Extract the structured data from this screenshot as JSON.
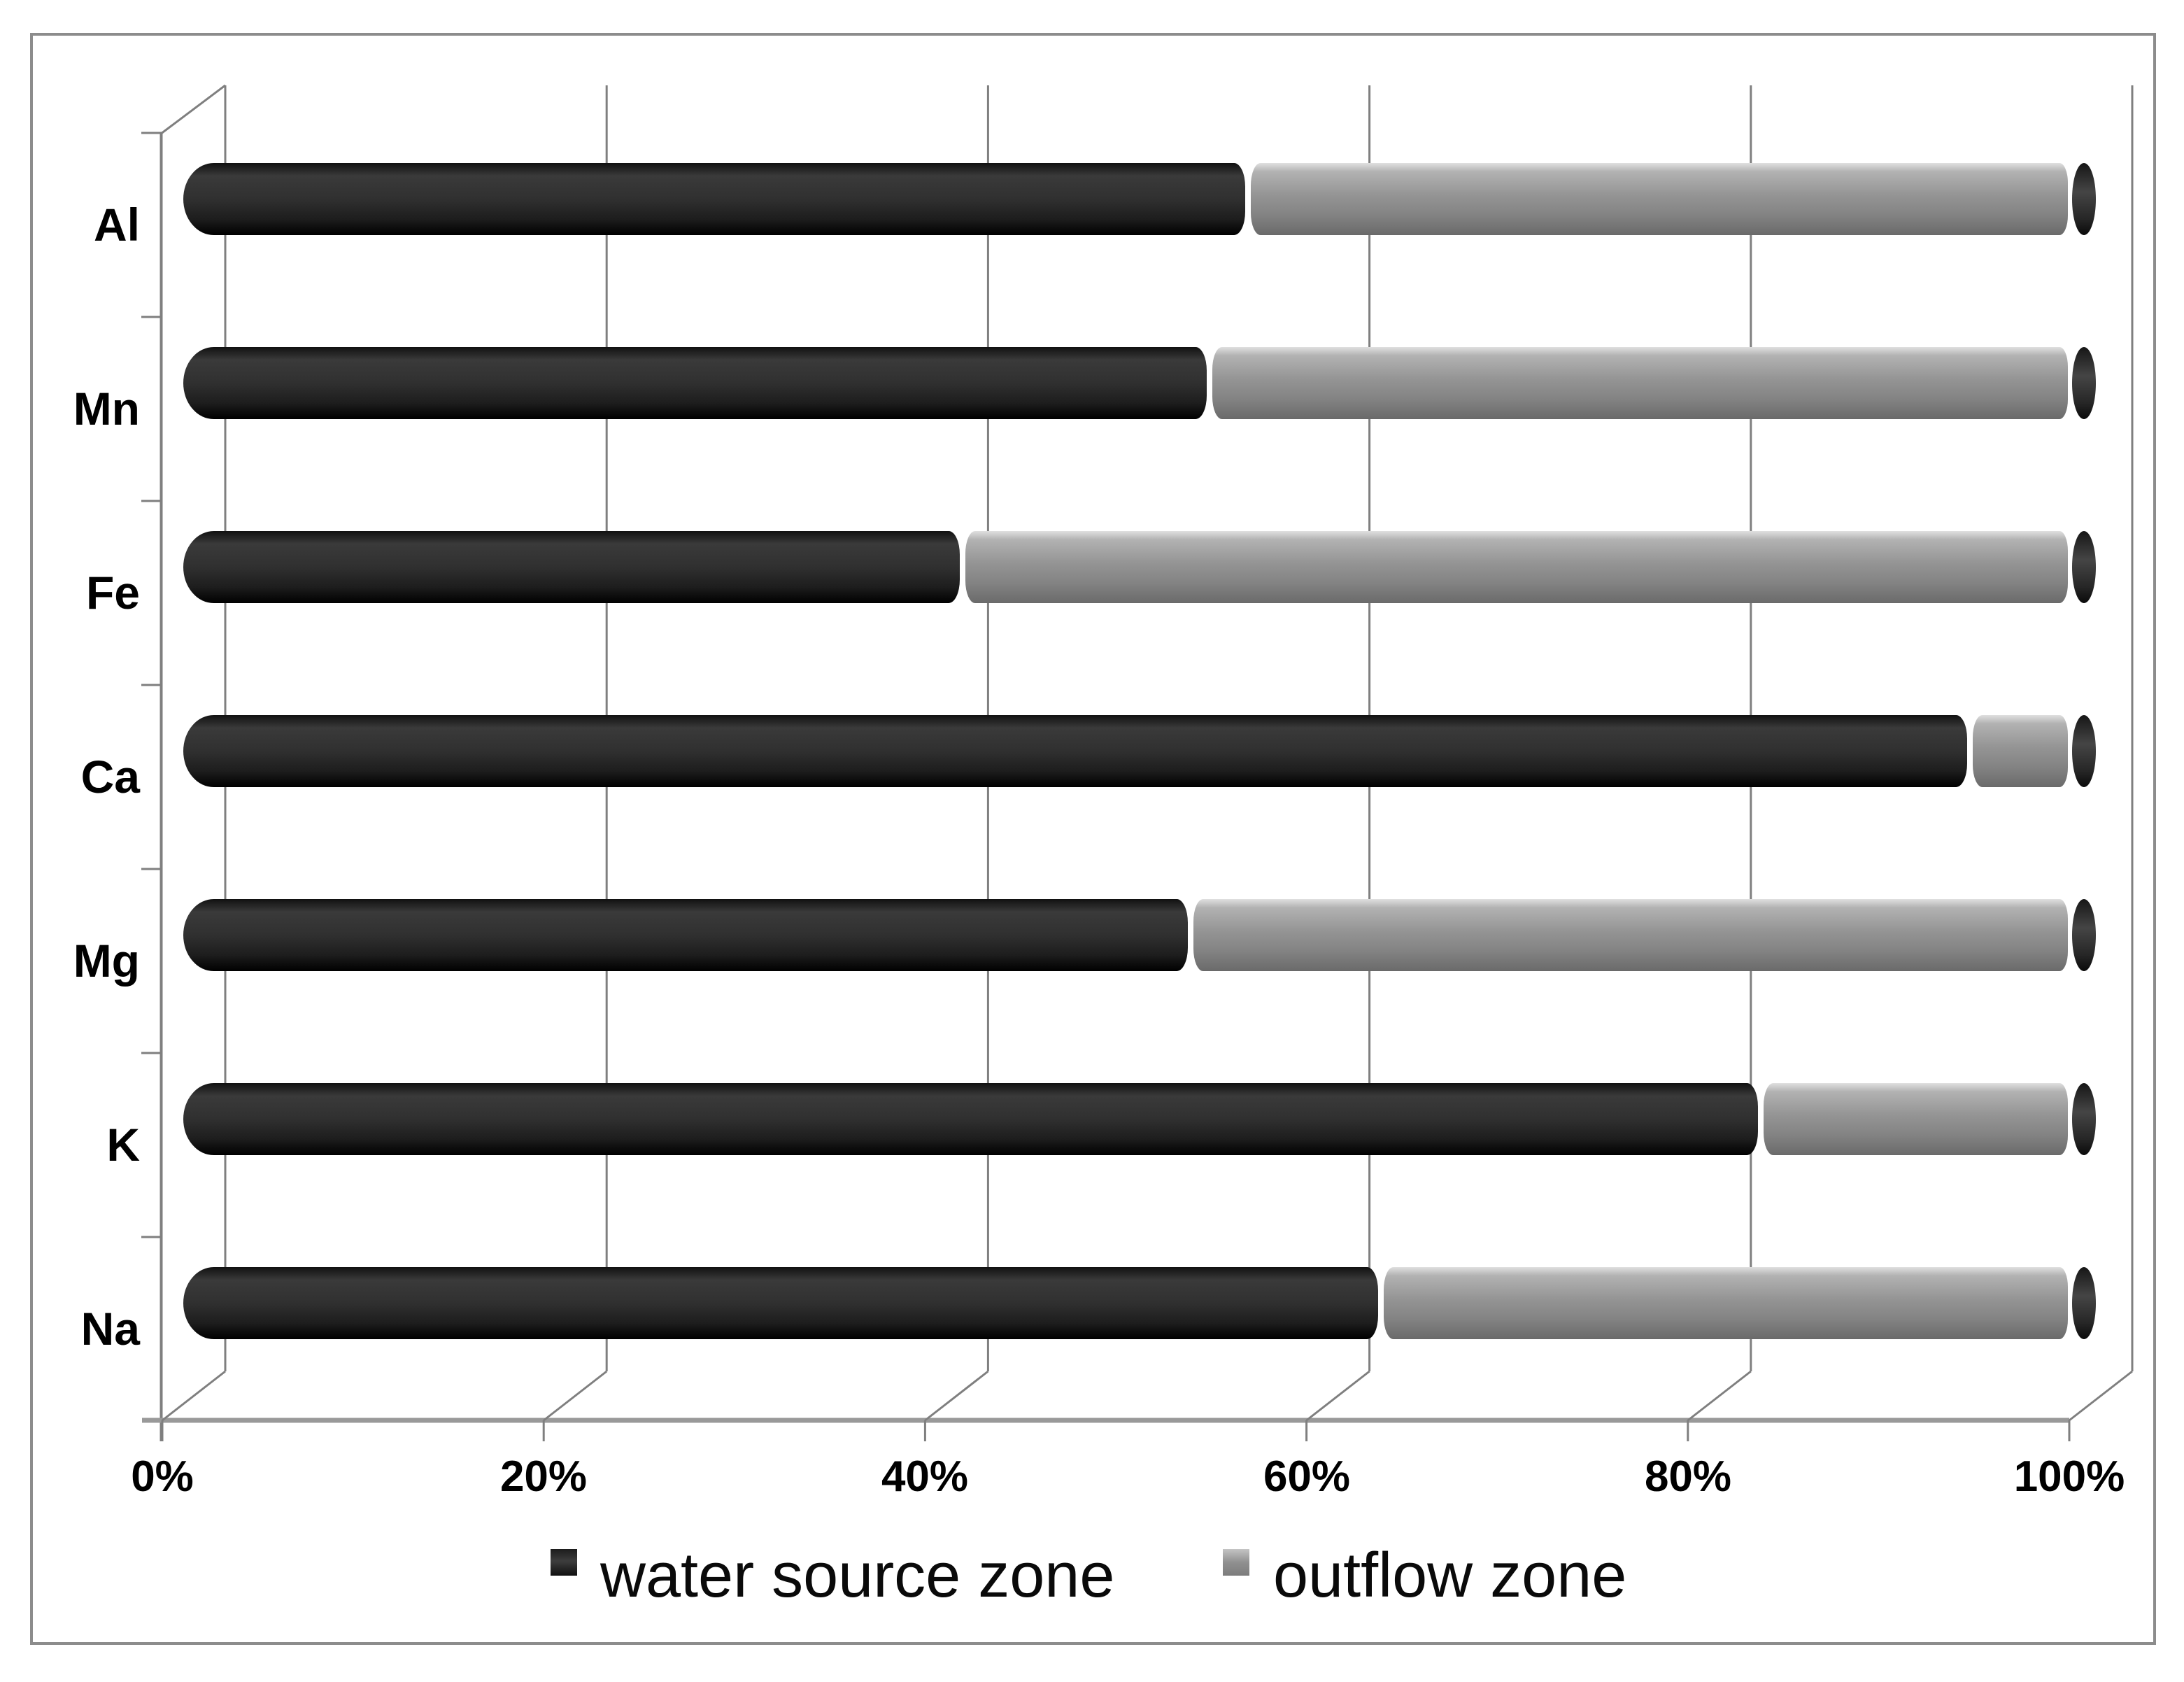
{
  "chart_data": {
    "type": "bar",
    "variant": "3d-cylinder-horizontal-stacked-100percent",
    "title": "",
    "categories": [
      "Al",
      "Mn",
      "Fe",
      "Ca",
      "Mg",
      "K",
      "Na"
    ],
    "series": [
      {
        "name": "water source zone",
        "color": "#2b2b2b",
        "values_pct": [
          56,
          54,
          41,
          94,
          53,
          83,
          63
        ]
      },
      {
        "name": "outflow zone",
        "color": "#969696",
        "values_pct": [
          44,
          46,
          59,
          6,
          47,
          17,
          37
        ]
      }
    ],
    "x_axis": {
      "min": 0,
      "max": 100,
      "unit": "%",
      "tick_labels": [
        "0%",
        "20%",
        "40%",
        "60%",
        "80%",
        "100%"
      ]
    },
    "y_axis": {
      "tick_labels": [
        "Al",
        "Mn",
        "Fe",
        "Ca",
        "Mg",
        "K",
        "Na"
      ]
    },
    "grid": true,
    "legend_position": "bottom",
    "colors": {
      "frame": "#8c8c8c",
      "gridline": "#7f7f7f",
      "floor_line": "#999999",
      "background": "#ffffff",
      "text": "#000000"
    }
  }
}
